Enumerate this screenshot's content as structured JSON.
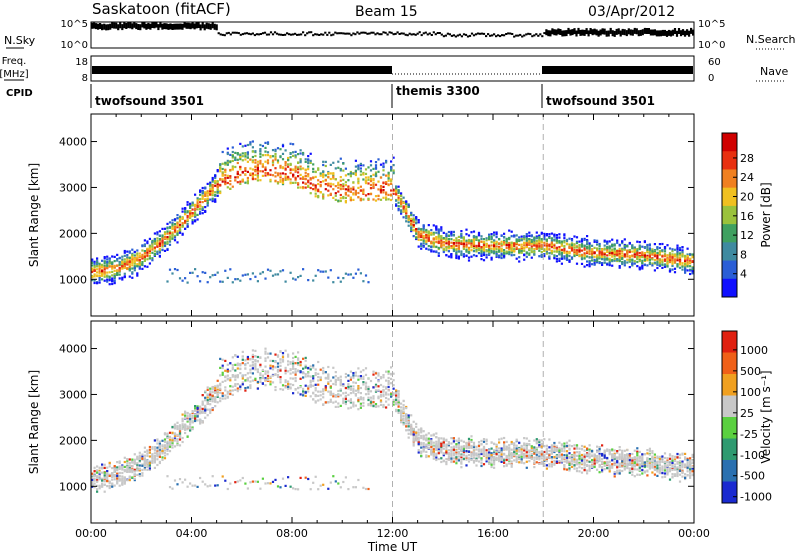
{
  "header": {
    "station": "Saskatoon (fitACF)",
    "beam": "Beam 15",
    "date": "03/Apr/2012"
  },
  "left_labels": {
    "nsky": "N.Sky",
    "freq": "Freq.",
    "freq_unit": "[MHz]",
    "cpid": "CPID"
  },
  "right_labels": {
    "nsearch": "N.Search",
    "nave": "Nave"
  },
  "noise_axis": {
    "left_ticks": [
      "10^5",
      "10^0"
    ],
    "right_ticks": [
      "10^5",
      "10^0"
    ]
  },
  "freq_axis": {
    "left_ticks": [
      "18",
      "8"
    ],
    "right_ticks": [
      "60",
      "0"
    ]
  },
  "cpid_segments": [
    {
      "label": "twofsound 3501",
      "start_hour": 0
    },
    {
      "label": "themis 3300",
      "start_hour": 12
    },
    {
      "label": "twofsound 3501",
      "start_hour": 18
    }
  ],
  "chart_data": [
    {
      "type": "heatmap",
      "quantity": "Power",
      "ylabel": "Slant Range [km]",
      "xlabel": "Time UT",
      "ylim": [
        200,
        4600
      ],
      "xlim_hours": [
        0,
        24
      ],
      "x_ticks": [
        "00:00",
        "04:00",
        "08:00",
        "12:00",
        "16:00",
        "20:00",
        "00:00"
      ],
      "y_ticks": [
        1000,
        2000,
        3000,
        4000
      ],
      "colorbar": {
        "label": "Power [dB]",
        "ticks": [
          "4",
          "8",
          "12",
          "16",
          "20",
          "24",
          "28"
        ]
      },
      "echo_band_km": [
        [
          0,
          1200
        ],
        [
          1,
          1250
        ],
        [
          2,
          1500
        ],
        [
          3,
          1950
        ],
        [
          4,
          2500
        ],
        [
          5,
          3100
        ],
        [
          6,
          3350
        ],
        [
          7,
          3400
        ],
        [
          8,
          3300
        ],
        [
          9,
          3050
        ],
        [
          10,
          2950
        ],
        [
          11,
          2950
        ],
        [
          12,
          3000
        ],
        [
          13,
          2000
        ],
        [
          14,
          1800
        ],
        [
          16,
          1750
        ],
        [
          18,
          1750
        ],
        [
          20,
          1600
        ],
        [
          22,
          1550
        ],
        [
          24,
          1400
        ]
      ]
    },
    {
      "type": "heatmap",
      "quantity": "Velocity",
      "ylabel": "Slant Range [km]",
      "xlabel": "Time UT",
      "ylim": [
        200,
        4600
      ],
      "xlim_hours": [
        0,
        24
      ],
      "x_ticks": [
        "00:00",
        "04:00",
        "08:00",
        "12:00",
        "16:00",
        "20:00",
        "00:00"
      ],
      "y_ticks": [
        1000,
        2000,
        3000,
        4000
      ],
      "colorbar": {
        "label": "Velocity [m s⁻¹]",
        "ticks": [
          "1000",
          "500",
          "100",
          "25",
          "-25",
          "-100",
          "-500",
          "-1000"
        ]
      },
      "echo_band_km": [
        [
          0,
          1200
        ],
        [
          1,
          1250
        ],
        [
          2,
          1500
        ],
        [
          3,
          1950
        ],
        [
          4,
          2500
        ],
        [
          5,
          3100
        ],
        [
          6,
          3350
        ],
        [
          7,
          3400
        ],
        [
          8,
          3300
        ],
        [
          9,
          3050
        ],
        [
          10,
          2950
        ],
        [
          11,
          2950
        ],
        [
          12,
          3000
        ],
        [
          13,
          2000
        ],
        [
          14,
          1800
        ],
        [
          16,
          1750
        ],
        [
          18,
          1750
        ],
        [
          20,
          1600
        ],
        [
          22,
          1550
        ],
        [
          24,
          1400
        ]
      ]
    }
  ],
  "colors": {
    "power": [
      "#1010ff",
      "#2a5ed6",
      "#3f8aa0",
      "#3fa060",
      "#9ac23c",
      "#f0c020",
      "#f08020",
      "#e83010",
      "#d00000"
    ],
    "velocity": [
      "#1a2ad0",
      "#2a70b0",
      "#2f9a70",
      "#5ad040",
      "#c8c8c8",
      "#f0a020",
      "#f06018",
      "#e02010"
    ]
  }
}
